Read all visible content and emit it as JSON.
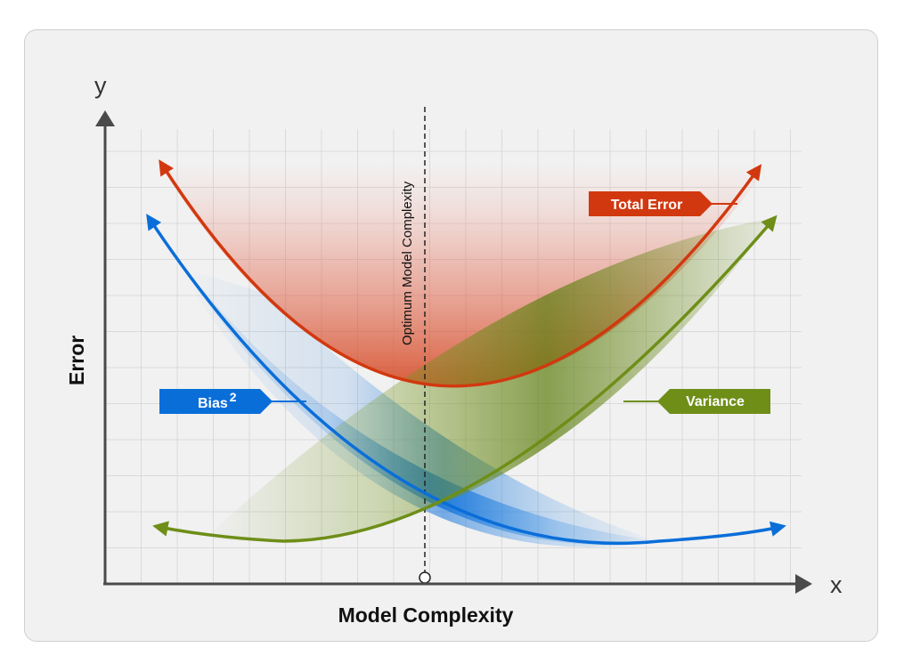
{
  "axes": {
    "y_letter": "y",
    "x_letter": "x",
    "y_title": "Error",
    "x_title": "Model Complexity"
  },
  "optimum_label": "Optimum Model Complexity",
  "curves": {
    "total_error": {
      "label": "Total Error",
      "color": "#d2380f"
    },
    "bias": {
      "label": "Bias",
      "superscript": "2",
      "color": "#0a6ed9"
    },
    "variance": {
      "label": "Variance",
      "color": "#6e8e18"
    }
  },
  "grid_color": "#dadada"
}
